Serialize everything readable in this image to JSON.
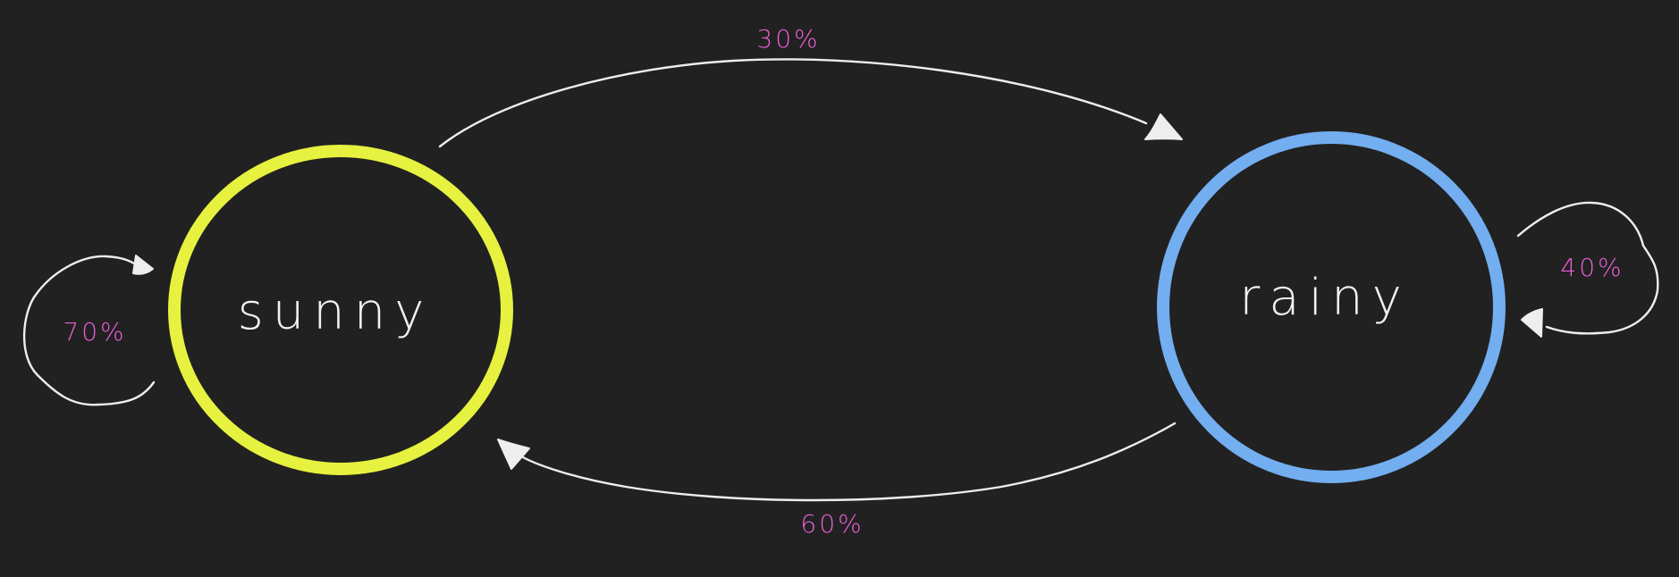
{
  "diagram": {
    "type": "state-transition",
    "colors": {
      "background": "#212121",
      "edge": "#eeeeee",
      "edge_label": "#e85fd4",
      "state_text": "#f2f2f2"
    },
    "states": [
      {
        "id": "sunny",
        "label": "sunny",
        "color": "#e6f23f"
      },
      {
        "id": "rainy",
        "label": "rainy",
        "color": "#72aef0"
      }
    ],
    "transitions": [
      {
        "from": "sunny",
        "to": "sunny",
        "label": "70%"
      },
      {
        "from": "sunny",
        "to": "rainy",
        "label": "30%"
      },
      {
        "from": "rainy",
        "to": "rainy",
        "label": "40%"
      },
      {
        "from": "rainy",
        "to": "sunny",
        "label": "60%"
      }
    ]
  }
}
